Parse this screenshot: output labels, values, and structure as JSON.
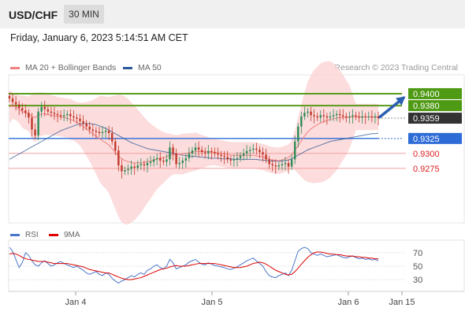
{
  "header": {
    "symbol": "USD/CHF",
    "timeframe": "30 MIN"
  },
  "datetime": "Friday, January 6, 2023 5:14:51 AM CET",
  "legend": {
    "ma20": {
      "label": "MA 20 + Bollinger Bands",
      "color": "#f08080"
    },
    "ma50": {
      "label": "MA 50",
      "color": "#2b5797"
    }
  },
  "credit": "Research © 2023 Trading Central",
  "rsi_legend": {
    "rsi": {
      "label": "RSI",
      "color": "#4a76c9"
    },
    "ma9": {
      "label": "9MA",
      "color": "#dd0000"
    }
  },
  "chart_data": [
    {
      "type": "candlestick",
      "ylim": [
        0.9185,
        0.9425
      ],
      "x_ticks": [
        "Jan 4",
        "Jan 5",
        "Jan 6",
        "Jan 15"
      ],
      "closes": [
        0.9392,
        0.9386,
        0.9382,
        0.9376,
        0.9372,
        0.9368,
        0.936,
        0.934,
        0.933,
        0.937,
        0.9378,
        0.9374,
        0.937,
        0.9368,
        0.9366,
        0.9364,
        0.9362,
        0.9364,
        0.9366,
        0.9362,
        0.936,
        0.9358,
        0.9354,
        0.935,
        0.9345,
        0.934,
        0.9338,
        0.9336,
        0.9334,
        0.9336,
        0.9338,
        0.9334,
        0.932,
        0.9305,
        0.928,
        0.927,
        0.9272,
        0.9274,
        0.9278,
        0.9276,
        0.928,
        0.9282,
        0.928,
        0.9284,
        0.9286,
        0.929,
        0.9292,
        0.9288,
        0.9286,
        0.929,
        0.931,
        0.93,
        0.9282,
        0.9284,
        0.9288,
        0.9292,
        0.93,
        0.9305,
        0.931,
        0.9306,
        0.9302,
        0.93,
        0.9304,
        0.9302,
        0.93,
        0.9298,
        0.9296,
        0.9294,
        0.929,
        0.9288,
        0.929,
        0.9292,
        0.9296,
        0.93,
        0.9304,
        0.9306,
        0.9308,
        0.9306,
        0.9302,
        0.9298,
        0.929,
        0.9282,
        0.928,
        0.9278,
        0.928,
        0.9282,
        0.9284,
        0.9278,
        0.929,
        0.932,
        0.9345,
        0.9362,
        0.9368,
        0.937,
        0.9364,
        0.9362,
        0.936,
        0.9364,
        0.9362,
        0.936,
        0.9362,
        0.9364,
        0.9366,
        0.9364,
        0.9362,
        0.936,
        0.9362,
        0.9364,
        0.9362,
        0.936,
        0.9362,
        0.9361,
        0.9362,
        0.936,
        0.9362,
        0.9359
      ],
      "ma20": [
        0.9378,
        0.938,
        0.9378,
        0.9374,
        0.937,
        0.9368,
        0.9366,
        0.9362,
        0.936,
        0.9364,
        0.9366,
        0.9366,
        0.9365,
        0.9364,
        0.9363,
        0.9362,
        0.9361,
        0.936,
        0.9359,
        0.9357,
        0.9355,
        0.9352,
        0.9349,
        0.9345,
        0.9341,
        0.9337,
        0.9333,
        0.9329,
        0.9325,
        0.9321,
        0.9318,
        0.9314,
        0.9308,
        0.9302,
        0.9296,
        0.9291,
        0.9288,
        0.9286,
        0.9285,
        0.9284,
        0.9284,
        0.9284,
        0.9285,
        0.9286,
        0.9287,
        0.9289,
        0.9291,
        0.9292,
        0.9293,
        0.9295,
        0.9297,
        0.9298,
        0.9298,
        0.9298,
        0.9299,
        0.93,
        0.9301,
        0.9302,
        0.9303,
        0.9303,
        0.9303,
        0.9303,
        0.9303,
        0.9302,
        0.9302,
        0.9301,
        0.93,
        0.9299,
        0.9298,
        0.9297,
        0.9297,
        0.9297,
        0.9297,
        0.9297,
        0.9297,
        0.9297,
        0.9297,
        0.9296,
        0.9295,
        0.9294,
        0.9292,
        0.929,
        0.9289,
        0.9288,
        0.9288,
        0.9289,
        0.9291,
        0.9293,
        0.9298,
        0.9305,
        0.9313,
        0.9321,
        0.9329,
        0.9336,
        0.9341,
        0.9345,
        0.9348,
        0.9351,
        0.9353,
        0.9355,
        0.9357,
        0.9358,
        0.9359,
        0.936,
        0.936,
        0.936,
        0.9361,
        0.9361,
        0.9361,
        0.9361,
        0.9361,
        0.9361,
        0.9361,
        0.9361,
        0.9361,
        0.9361
      ],
      "ma50": [
        0.929,
        0.9293,
        0.9296,
        0.9299,
        0.9302,
        0.9305,
        0.9308,
        0.9311,
        0.9314,
        0.9317,
        0.932,
        0.9323,
        0.9326,
        0.9329,
        0.9332,
        0.9335,
        0.9338,
        0.934,
        0.9342,
        0.9344,
        0.9346,
        0.9348,
        0.9349,
        0.935,
        0.935,
        0.935,
        0.9349,
        0.9348,
        0.9346,
        0.9344,
        0.9342,
        0.9339,
        0.9336,
        0.9333,
        0.933,
        0.9327,
        0.9324,
        0.9321,
        0.9318,
        0.9316,
        0.9314,
        0.9312,
        0.931,
        0.9308,
        0.9307,
        0.9306,
        0.9305,
        0.9304,
        0.9303,
        0.9302,
        0.9301,
        0.93,
        0.9299,
        0.9298,
        0.9297,
        0.9296,
        0.9296,
        0.9295,
        0.9295,
        0.9294,
        0.9294,
        0.9293,
        0.9293,
        0.9292,
        0.9292,
        0.9292,
        0.9291,
        0.9291,
        0.9291,
        0.9291,
        0.929,
        0.929,
        0.929,
        0.929,
        0.929,
        0.929,
        0.929,
        0.929,
        0.9289,
        0.9289,
        0.9288,
        0.9288,
        0.9287,
        0.9287,
        0.9287,
        0.9287,
        0.9288,
        0.9289,
        0.9291,
        0.9294,
        0.9297,
        0.93,
        0.9303,
        0.9306,
        0.9308,
        0.931,
        0.9312,
        0.9314,
        0.9316,
        0.9318,
        0.932,
        0.9321,
        0.9322,
        0.9323,
        0.9324,
        0.9325,
        0.9326,
        0.9327,
        0.9328,
        0.9329,
        0.933,
        0.9331,
        0.9332,
        0.9333,
        0.9333,
        0.9334
      ],
      "levels": [
        {
          "value": 0.94,
          "label": "0.9400",
          "kind": "resistance",
          "color": "#5a9a1a"
        },
        {
          "value": 0.938,
          "label": "0.9380",
          "kind": "resistance",
          "color": "#5a9a1a"
        },
        {
          "value": 0.9359,
          "label": "0.9359",
          "kind": "last",
          "color": "#333333"
        },
        {
          "value": 0.9325,
          "label": "0.9325",
          "kind": "pivot",
          "color": "#2d6bd6"
        },
        {
          "value": 0.93,
          "label": "0.9300",
          "kind": "support",
          "color": "#dd3333"
        },
        {
          "value": 0.9275,
          "label": "0.9275",
          "kind": "support",
          "color": "#dd3333"
        }
      ],
      "arrow": {
        "direction": "up",
        "color": "#2b5fb0"
      }
    },
    {
      "type": "line",
      "name": "rsi-panel",
      "ylim": [
        15,
        85
      ],
      "y_ticks": [
        70,
        50,
        30
      ],
      "rsi": [
        78,
        72,
        60,
        48,
        55,
        70,
        66,
        58,
        52,
        50,
        55,
        58,
        54,
        50,
        52,
        55,
        57,
        54,
        52,
        50,
        48,
        50,
        47,
        44,
        40,
        38,
        40,
        42,
        38,
        36,
        40,
        38,
        32,
        28,
        25,
        28,
        30,
        33,
        36,
        34,
        38,
        40,
        38,
        44,
        46,
        50,
        52,
        48,
        46,
        50,
        60,
        55,
        46,
        48,
        50,
        52,
        56,
        58,
        60,
        56,
        53,
        52,
        55,
        53,
        51,
        50,
        49,
        48,
        46,
        45,
        47,
        49,
        52,
        55,
        58,
        60,
        62,
        58,
        54,
        50,
        42,
        36,
        34,
        33,
        36,
        38,
        40,
        36,
        44,
        58,
        72,
        76,
        78,
        76,
        70,
        68,
        66,
        68,
        66,
        64,
        65,
        66,
        67,
        65,
        63,
        62,
        64,
        65,
        63,
        61,
        62,
        60,
        61,
        59,
        60,
        58
      ],
      "ma9": [
        68,
        69,
        68,
        66,
        63,
        61,
        60,
        59,
        58,
        57,
        57,
        57,
        56,
        55,
        54,
        54,
        54,
        54,
        54,
        53,
        52,
        51,
        50,
        49,
        47,
        45,
        44,
        43,
        42,
        41,
        40,
        40,
        38,
        36,
        34,
        32,
        31,
        30,
        30,
        31,
        32,
        33,
        35,
        37,
        39,
        41,
        43,
        45,
        46,
        47,
        49,
        50,
        51,
        50,
        50,
        50,
        51,
        52,
        53,
        54,
        54,
        54,
        54,
        54,
        54,
        53,
        52,
        51,
        50,
        49,
        48,
        48,
        48,
        49,
        50,
        52,
        54,
        55,
        56,
        55,
        53,
        50,
        47,
        44,
        42,
        40,
        38,
        37,
        38,
        42,
        47,
        53,
        58,
        63,
        67,
        70,
        71,
        71,
        70,
        69,
        68,
        68,
        67,
        67,
        66,
        65,
        65,
        65,
        64,
        64,
        63,
        63,
        62,
        62,
        61,
        61
      ]
    }
  ]
}
